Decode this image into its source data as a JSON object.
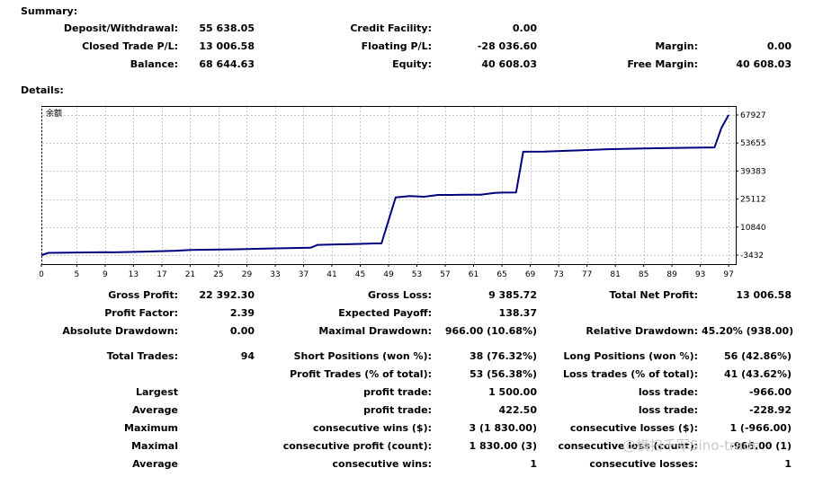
{
  "summary": {
    "title": "Summary:",
    "deposit_label": "Deposit/Withdrawal:",
    "deposit_value": "55 638.05",
    "credit_label": "Credit Facility:",
    "credit_value": "0.00",
    "closed_label": "Closed Trade P/L:",
    "closed_value": "13 006.58",
    "floating_label": "Floating P/L:",
    "floating_value": "-28 036.60",
    "margin_label": "Margin:",
    "margin_value": "0.00",
    "balance_label": "Balance:",
    "balance_value": "68 644.63",
    "equity_label": "Equity:",
    "equity_value": "40 608.03",
    "free_margin_label": "Free Margin:",
    "free_margin_value": "40 608.03"
  },
  "details_title": "Details:",
  "chart_data": {
    "type": "line",
    "series": [
      {
        "name": "余额",
        "color": "#000080",
        "x": [
          0,
          1,
          5,
          9,
          10,
          14,
          19,
          21,
          27,
          33,
          38,
          39,
          45,
          47,
          48,
          50,
          52,
          54,
          56,
          58,
          60,
          62,
          64,
          65,
          67,
          68,
          71,
          75,
          80,
          85,
          90,
          95,
          96,
          97
        ],
        "values": [
          -3432,
          -2300,
          -2100,
          -1900,
          -2000,
          -1700,
          -1200,
          -800,
          -500,
          0,
          300,
          1800,
          2300,
          2500,
          2500,
          26000,
          26600,
          26300,
          27200,
          27200,
          27300,
          27300,
          28200,
          28400,
          28500,
          49200,
          49300,
          49800,
          50500,
          50900,
          51200,
          51400,
          61500,
          67927
        ]
      }
    ],
    "xticks": [
      0,
      5,
      9,
      13,
      17,
      21,
      25,
      29,
      33,
      37,
      41,
      45,
      49,
      53,
      57,
      61,
      65,
      69,
      73,
      77,
      81,
      85,
      89,
      93,
      97
    ],
    "yticks": [
      67927,
      53655,
      39383,
      25112,
      10840,
      -3432
    ],
    "xlim": [
      0,
      98
    ],
    "ylim": [
      -3432,
      67927
    ],
    "grid": true,
    "legend_position": "top-left"
  },
  "stats": {
    "gross_profit_label": "Gross Profit:",
    "gross_profit": "22 392.30",
    "gross_loss_label": "Gross Loss:",
    "gross_loss": "9 385.72",
    "net_profit_label": "Total Net Profit:",
    "net_profit": "13 006.58",
    "profit_factor_label": "Profit Factor:",
    "profit_factor": "2.39",
    "expected_payoff_label": "Expected Payoff:",
    "expected_payoff": "138.37",
    "abs_dd_label": "Absolute Drawdown:",
    "abs_dd": "0.00",
    "max_dd_label": "Maximal Drawdown:",
    "max_dd": "966.00 (10.68%)",
    "rel_dd_label": "Relative Drawdown:",
    "rel_dd": "45.20% (938.00)",
    "total_trades_label": "Total Trades:",
    "total_trades": "94",
    "short_label": "Short Positions (won %):",
    "short": "38 (76.32%)",
    "long_label": "Long Positions (won %):",
    "long": "56 (42.86%)",
    "profit_trades_label": "Profit Trades (% of total):",
    "profit_trades": "53 (56.38%)",
    "loss_trades_label": "Loss trades (% of total):",
    "loss_trades": "41 (43.62%)",
    "largest_label": "Largest",
    "largest_profit_label": "profit trade:",
    "largest_profit": "1 500.00",
    "largest_loss_label": "loss trade:",
    "largest_loss": "-966.00",
    "average_label": "Average",
    "average_profit_label": "profit trade:",
    "average_profit": "422.50",
    "average_loss_label": "loss trade:",
    "average_loss": "-228.92",
    "maximum_label": "Maximum",
    "max_cons_wins_label": "consecutive wins ($):",
    "max_cons_wins": "3 (1 830.00)",
    "max_cons_losses_label": "consecutive losses ($):",
    "max_cons_losses": "1 (-966.00)",
    "maximal_label": "Maximal",
    "maximal_profit_label": "consecutive profit (count):",
    "maximal_profit": "1 830.00 (3)",
    "maximal_loss_label": "consecutive loss (count):",
    "maximal_loss": "-966.00 (1)",
    "average2_label": "Average",
    "avg_cons_wins_label": "consecutive wins:",
    "avg_cons_wins": "1",
    "avg_cons_losses_label": "consecutive losses:",
    "avg_cons_losses": "1"
  },
  "watermark": "@横扫千军Sino-trade"
}
